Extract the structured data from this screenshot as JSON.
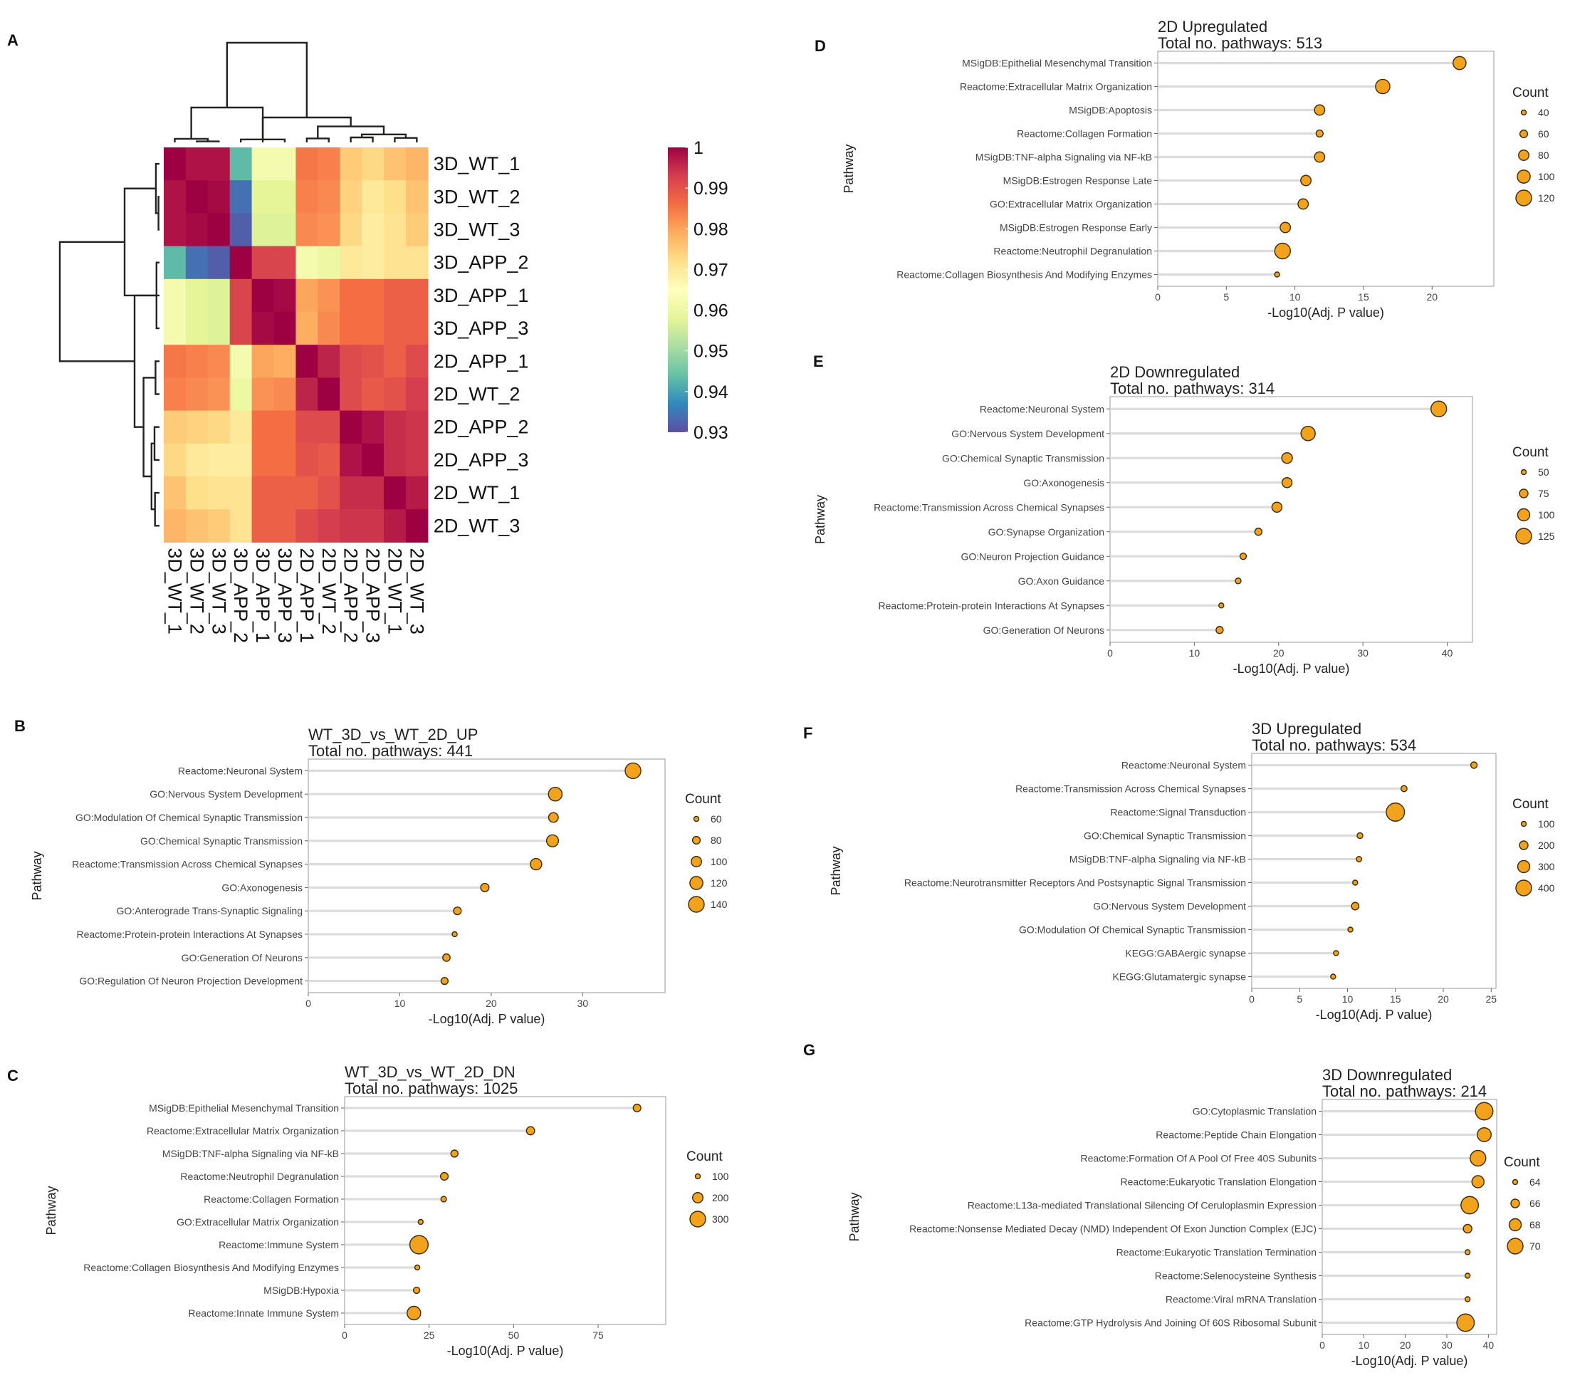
{
  "panel_letters": [
    "A",
    "B",
    "C",
    "D",
    "E",
    "F",
    "G"
  ],
  "heatmap": {
    "samples": [
      "3D_WT_1",
      "3D_WT_2",
      "3D_WT_3",
      "3D_APP_2",
      "3D_APP_1",
      "3D_APP_3",
      "2D_APP_1",
      "2D_WT_2",
      "2D_APP_2",
      "2D_APP_3",
      "2D_WT_1",
      "2D_WT_3"
    ],
    "colorbar_ticks": [
      "1",
      "0.99",
      "0.98",
      "0.97",
      "0.96",
      "0.95",
      "0.94",
      "0.93"
    ]
  },
  "chart_data": [
    {
      "panel": "A",
      "type": "heatmap",
      "rows": [
        "3D_WT_1",
        "3D_WT_2",
        "3D_WT_3",
        "3D_APP_2",
        "3D_APP_1",
        "3D_APP_3",
        "2D_APP_1",
        "2D_WT_2",
        "2D_APP_2",
        "2D_APP_3",
        "2D_WT_1",
        "2D_WT_3"
      ],
      "columns": [
        "3D_WT_1",
        "3D_WT_2",
        "3D_WT_3",
        "3D_APP_2",
        "3D_APP_1",
        "3D_APP_3",
        "2D_APP_1",
        "2D_WT_2",
        "2D_APP_2",
        "2D_APP_3",
        "2D_WT_1",
        "2D_WT_3"
      ],
      "values": [
        [
          1.0,
          0.998,
          0.998,
          0.943,
          0.962,
          0.962,
          0.985,
          0.984,
          0.975,
          0.973,
          0.976,
          0.978
        ],
        [
          0.998,
          1.0,
          0.999,
          0.934,
          0.958,
          0.958,
          0.984,
          0.983,
          0.974,
          0.97,
          0.972,
          0.976
        ],
        [
          0.998,
          0.999,
          1.0,
          0.932,
          0.957,
          0.957,
          0.983,
          0.982,
          0.973,
          0.969,
          0.971,
          0.975
        ],
        [
          0.943,
          0.934,
          0.932,
          1.0,
          0.992,
          0.992,
          0.962,
          0.96,
          0.97,
          0.969,
          0.971,
          0.971
        ],
        [
          0.962,
          0.958,
          0.957,
          0.992,
          1.0,
          0.999,
          0.98,
          0.982,
          0.986,
          0.986,
          0.988,
          0.988
        ],
        [
          0.962,
          0.958,
          0.957,
          0.992,
          0.999,
          1.0,
          0.979,
          0.983,
          0.986,
          0.986,
          0.988,
          0.988
        ],
        [
          0.985,
          0.984,
          0.983,
          0.962,
          0.98,
          0.979,
          1.0,
          0.996,
          0.991,
          0.99,
          0.988,
          0.991
        ],
        [
          0.984,
          0.983,
          0.982,
          0.96,
          0.982,
          0.983,
          0.996,
          1.0,
          0.991,
          0.989,
          0.99,
          0.993
        ],
        [
          0.975,
          0.974,
          0.973,
          0.97,
          0.986,
          0.986,
          0.991,
          0.991,
          1.0,
          0.998,
          0.995,
          0.994
        ],
        [
          0.973,
          0.97,
          0.969,
          0.969,
          0.986,
          0.986,
          0.99,
          0.989,
          0.998,
          1.0,
          0.995,
          0.994
        ],
        [
          0.976,
          0.972,
          0.971,
          0.971,
          0.988,
          0.988,
          0.988,
          0.99,
          0.995,
          0.995,
          1.0,
          0.997
        ],
        [
          0.978,
          0.976,
          0.975,
          0.971,
          0.988,
          0.988,
          0.991,
          0.993,
          0.994,
          0.994,
          0.997,
          1.0
        ]
      ],
      "colorbar_range": [
        0.93,
        1
      ],
      "colormap": [
        "#5e4fa2",
        "#3288bd",
        "#66c2a5",
        "#abdda4",
        "#e6f598",
        "#ffffbf",
        "#fee08b",
        "#fdae61",
        "#f46d43",
        "#d53e4f",
        "#9e0142"
      ]
    },
    {
      "panel": "B",
      "type": "scatter",
      "title": "WT_3D_vs_WT_2D_UP",
      "subtitle": "Total no. pathways: 441",
      "xlabel": "-Log10(Adj. P value)",
      "ylabel": "Pathway",
      "xlim": [
        0,
        39
      ],
      "xticks": [
        0,
        10,
        20,
        30
      ],
      "categories": [
        "Reactome:Neuronal System",
        "GO:Nervous System Development",
        "GO:Modulation Of Chemical Synaptic Transmission",
        "GO:Chemical Synaptic Transmission",
        "Reactome:Transmission Across Chemical Synapses",
        "GO:Axonogenesis",
        "GO:Anterograde Trans-Synaptic Signaling",
        "Reactome:Protein-protein Interactions At Synapses",
        "GO:Generation Of Neurons",
        "GO:Regulation Of Neuron Projection Development"
      ],
      "x": [
        35.5,
        27.0,
        26.8,
        26.7,
        24.9,
        19.3,
        16.3,
        16.0,
        15.1,
        14.9
      ],
      "count": [
        140,
        125,
        95,
        112,
        108,
        85,
        80,
        28,
        78,
        75
      ],
      "legend": {
        "title": "Count",
        "values": [
          60,
          80,
          100,
          120,
          140
        ]
      }
    },
    {
      "panel": "C",
      "type": "scatter",
      "title": "WT_3D_vs_WT_2D_DN",
      "subtitle": "Total no. pathways: 1025",
      "xlabel": "-Log10(Adj. P value)",
      "ylabel": "Pathway",
      "xlim": [
        0,
        95
      ],
      "xticks": [
        0,
        25,
        50,
        75
      ],
      "categories": [
        "MSigDB:Epithelial Mesenchymal Transition",
        "Reactome:Extracellular Matrix Organization",
        "MSigDB:TNF-alpha Signaling via NF-kB",
        "Reactome:Neutrophil Degranulation",
        "Reactome:Collagen Formation",
        "GO:Extracellular Matrix Organization",
        "Reactome:Immune System",
        "Reactome:Collagen Biosynthesis And Modifying Enzymes",
        "MSigDB:Hypoxia",
        "Reactome:Innate Immune System"
      ],
      "x": [
        86.5,
        55.0,
        32.5,
        29.5,
        29.3,
        22.5,
        22.0,
        21.5,
        21.3,
        20.5
      ],
      "count": [
        150,
        160,
        140,
        150,
        110,
        100,
        380,
        60,
        125,
        260
      ],
      "legend": {
        "title": "Count",
        "values": [
          100,
          200,
          300
        ]
      }
    },
    {
      "panel": "D",
      "type": "scatter",
      "title": "2D Upregulated",
      "subtitle": "Total no. pathways: 513",
      "xlabel": "-Log10(Adj. P value)",
      "ylabel": "Pathway",
      "xlim": [
        0,
        24.5
      ],
      "xticks": [
        0,
        5,
        10,
        15,
        20
      ],
      "categories": [
        "MSigDB:Epithelial Mesenchymal Transition",
        "Reactome:Extracellular Matrix Organization",
        "MSigDB:Apoptosis",
        "Reactome:Collagen Formation",
        "MSigDB:TNF-alpha Signaling via NF-kB",
        "MSigDB:Estrogen Response Late",
        "GO:Extracellular Matrix Organization",
        "MSigDB:Estrogen Response Early",
        "Reactome:Neutrophil Degranulation",
        "Reactome:Collagen Biosynthesis And Modifying Enzymes"
      ],
      "x": [
        22.0,
        16.4,
        11.8,
        11.8,
        11.8,
        10.8,
        10.6,
        9.3,
        9.1,
        8.7
      ],
      "count": [
        100,
        110,
        80,
        55,
        80,
        80,
        80,
        80,
        120,
        20
      ],
      "legend": {
        "title": "Count",
        "values": [
          40,
          60,
          80,
          100,
          120
        ]
      }
    },
    {
      "panel": "E",
      "type": "scatter",
      "title": "2D Downregulated",
      "subtitle": "Total no. pathways: 314",
      "xlabel": "-Log10(Adj. P value)",
      "ylabel": "Pathway",
      "xlim": [
        0,
        43
      ],
      "xticks": [
        0,
        10,
        20,
        30,
        40
      ],
      "categories": [
        "Reactome:Neuronal System",
        "GO:Nervous System Development",
        "GO:Chemical Synaptic Transmission",
        "GO:Axonogenesis",
        "Reactome:Transmission Across Chemical Synapses",
        "GO:Synapse Organization",
        "GO:Neuron Projection Guidance",
        "GO:Axon Guidance",
        "Reactome:Protein-protein Interactions At Synapses",
        "GO:Generation Of Neurons"
      ],
      "x": [
        39.0,
        23.5,
        21.0,
        21.0,
        19.8,
        17.6,
        15.8,
        15.2,
        13.2,
        13.0
      ],
      "count": [
        125,
        115,
        90,
        85,
        85,
        65,
        60,
        55,
        25,
        65
      ],
      "legend": {
        "title": "Count",
        "values": [
          50,
          75,
          100,
          125
        ]
      }
    },
    {
      "panel": "F",
      "type": "scatter",
      "title": "3D Upregulated",
      "subtitle": "Total no. pathways: 534",
      "xlabel": "-Log10(Adj. P value)",
      "ylabel": "Pathway",
      "xlim": [
        0,
        25.5
      ],
      "xticks": [
        0,
        5,
        10,
        15,
        20,
        25
      ],
      "categories": [
        "Reactome:Neuronal System",
        "Reactome:Transmission Across Chemical Synapses",
        "Reactome:Signal Transduction",
        "GO:Chemical Synaptic Transmission",
        "MSigDB:TNF-alpha Signaling via NF-kB",
        "Reactome:Neurotransmitter Receptors And Postsynaptic Signal Transmission",
        "GO:Nervous System Development",
        "GO:Modulation Of Chemical Synaptic Transmission",
        "KEGG:GABAergic synapse",
        "KEGG:Glutamatergic synapse"
      ],
      "x": [
        23.2,
        15.9,
        15.0,
        11.3,
        11.2,
        10.8,
        10.8,
        10.3,
        8.8,
        8.5
      ],
      "count": [
        140,
        130,
        470,
        120,
        110,
        100,
        170,
        70,
        50,
        60
      ],
      "legend": {
        "title": "Count",
        "values": [
          100,
          200,
          300,
          400
        ]
      }
    },
    {
      "panel": "G",
      "type": "scatter",
      "title": "3D Downregulated",
      "subtitle": "Total no. pathways: 214",
      "xlabel": "-Log10(Adj. P value)",
      "ylabel": "Pathway",
      "xlim": [
        0,
        42
      ],
      "xticks": [
        0,
        10,
        20,
        30,
        40
      ],
      "categories": [
        "GO:Cytoplasmic Translation",
        "Reactome:Peptide Chain Elongation",
        "Reactome:Formation Of A Pool Of Free 40S Subunits",
        "Reactome:Eukaryotic Translation Elongation",
        "Reactome:L13a-mediated Translational Silencing Of Ceruloplasmin Expression",
        "Reactome:Nonsense Mediated Decay (NMD) Independent Of Exon Junction Complex (EJC)",
        "Reactome:Eukaryotic Translation Termination",
        "Reactome:Selenocysteine Synthesis",
        "Reactome:Viral mRNA Translation",
        "Reactome:GTP Hydrolysis And Joining Of 60S Ribosomal Subunit"
      ],
      "x": [
        39.0,
        39.0,
        37.5,
        37.5,
        35.5,
        35.0,
        35.0,
        35.0,
        35.0,
        34.5
      ],
      "count": [
        71,
        69,
        70,
        68,
        71,
        66,
        62,
        62,
        62,
        71
      ],
      "legend": {
        "title": "Count",
        "values": [
          64,
          66,
          68,
          70
        ]
      }
    }
  ]
}
